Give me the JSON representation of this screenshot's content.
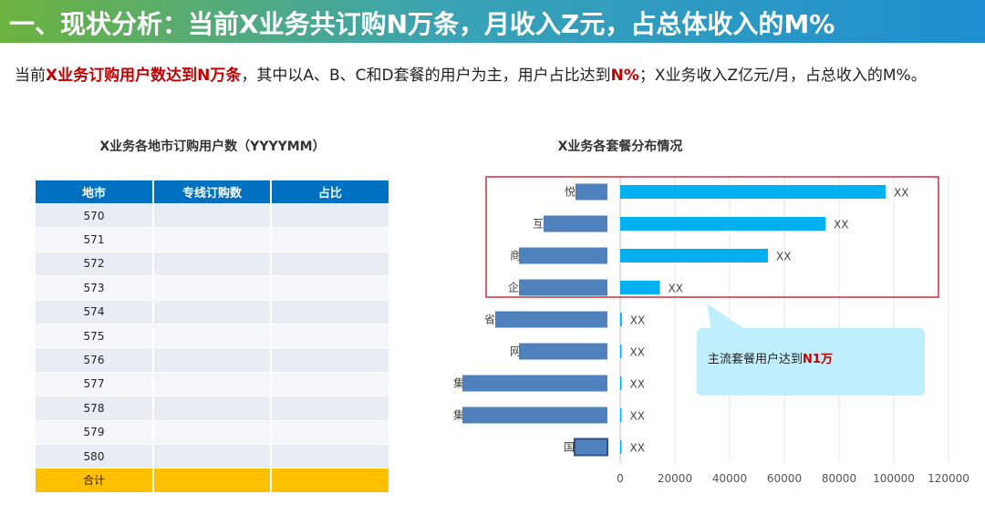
{
  "title": "一、现状分析：当前X业务共订购N万条，月收入Z元，占总体收入的M%",
  "intro": {
    "part1": "当前",
    "highlight1": "X业务订购用户数达到N万条",
    "part2": "，其中以A、B、C和D套餐的用户为主，用户占比达到",
    "highlight2": "N%",
    "part3": "；X业务收入Z亿元/月，占总收入的M%。"
  },
  "table": {
    "title": "X业务各地市订购用户数（YYYYMM）",
    "headers": [
      "地市",
      "专线订购数",
      "占比"
    ],
    "rows": [
      [
        "570",
        "",
        ""
      ],
      [
        "571",
        "",
        ""
      ],
      [
        "572",
        "",
        ""
      ],
      [
        "573",
        "",
        ""
      ],
      [
        "574",
        "",
        ""
      ],
      [
        "575",
        "",
        ""
      ],
      [
        "576",
        "",
        ""
      ],
      [
        "577",
        "",
        ""
      ],
      [
        "578",
        "",
        ""
      ],
      [
        "579",
        "",
        ""
      ],
      [
        "580",
        "",
        ""
      ]
    ],
    "total_label": "合计"
  },
  "chart_data": {
    "type": "bar",
    "orientation": "horizontal",
    "title": "X业务各套餐分布情况",
    "categories": [
      "悦",
      "互",
      "商务",
      "企",
      "省",
      "网吧",
      "集团",
      "集团",
      "国"
    ],
    "values": [
      97000,
      75000,
      54000,
      14500,
      600,
      500,
      300,
      200,
      100
    ],
    "data_labels": [
      "XX",
      "XX",
      "XX",
      "XX",
      "XX",
      "XX",
      "XX",
      "XX",
      "XX"
    ],
    "xlim": [
      0,
      120000
    ],
    "xticks": [
      "0",
      "20000",
      "40000",
      "60000",
      "80000",
      "100000",
      "120000"
    ],
    "grid": true,
    "bar_color": "#00b0f0"
  },
  "callout": {
    "text": "主流套餐用户达到",
    "highlight": "N1万"
  },
  "colors": {
    "accent_red": "#c00000",
    "table_header": "#0070c0",
    "total_row": "#ffc000",
    "redaction": "#4f81bd"
  }
}
